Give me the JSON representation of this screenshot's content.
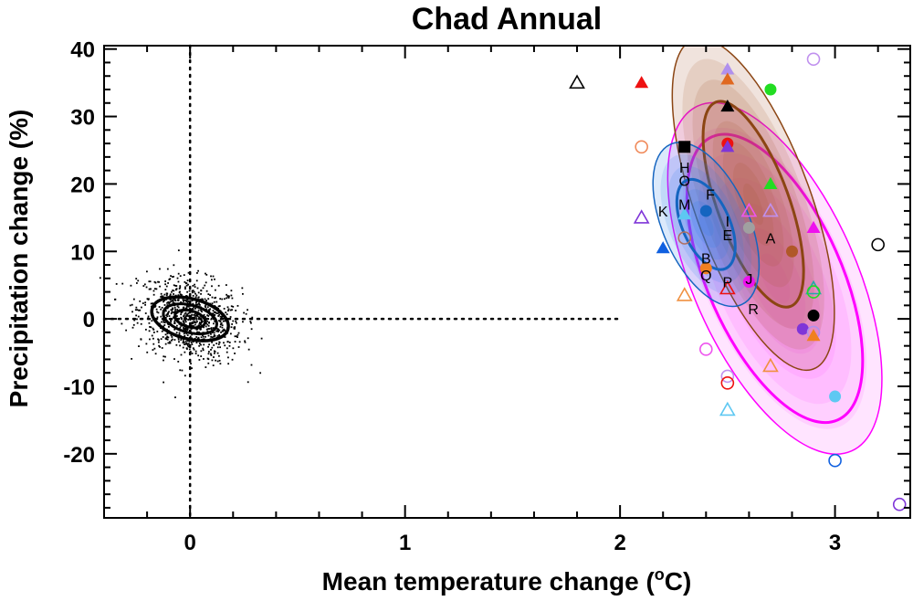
{
  "chart_data": {
    "type": "scatter",
    "title": "Chad Annual",
    "xlabel_main": "Mean temperature change (",
    "xlabel_sup": "o",
    "xlabel_end": "C)",
    "ylabel": "Precipitation change (%)",
    "xlim": [
      -0.4,
      3.35
    ],
    "ylim": [
      -29.5,
      40.5
    ],
    "x_ticks": [
      0,
      1,
      2,
      3
    ],
    "x_tick_labels": [
      "0",
      "1",
      "2",
      "3"
    ],
    "y_ticks": [
      40,
      30,
      20,
      10,
      0,
      -10,
      -20
    ],
    "y_tick_labels": [
      "40",
      "30",
      "20",
      "10",
      "0",
      "-10",
      "-20"
    ],
    "reference_lines": {
      "x": 0,
      "y": 0
    },
    "colors": {
      "magenta_fill": "#ff55ff",
      "magenta_edge": "#ff00ff",
      "brown_fill": "#a0522d",
      "brown_edge": "#8b4513",
      "blue_fill": "#1e78e8",
      "blue_edge": "#1565c0"
    },
    "distributions": [
      {
        "name": "natural variability",
        "center": [
          0.0,
          0.0
        ],
        "sx": 0.12,
        "sy": 3.0,
        "angle": -0.25
      },
      {
        "name": "magenta",
        "center": [
          2.72,
          6.0
        ],
        "semi_major": 28.0,
        "semi_minor": 0.38,
        "rotation_deg": -24
      },
      {
        "name": "brown",
        "center": [
          2.62,
          17.0
        ],
        "semi_major": 26.0,
        "semi_minor": 0.27,
        "rotation_deg": -20
      },
      {
        "name": "blue",
        "center": [
          2.4,
          14.0
        ],
        "semi_major": 13.0,
        "semi_minor": 0.2,
        "rotation_deg": -24
      }
    ],
    "markers": [
      {
        "x": 1.8,
        "y": 35,
        "shape": "triangle",
        "filled": false,
        "color": "#000000"
      },
      {
        "x": 2.1,
        "y": 35,
        "shape": "triangle",
        "filled": true,
        "color": "#ee1111"
      },
      {
        "x": 2.5,
        "y": 37,
        "shape": "triangle",
        "filled": true,
        "color": "#b090ee"
      },
      {
        "x": 2.5,
        "y": 35.5,
        "shape": "triangle",
        "filled": true,
        "color": "#e06820"
      },
      {
        "x": 2.5,
        "y": 31.5,
        "shape": "triangle",
        "filled": true,
        "color": "#000000"
      },
      {
        "x": 2.7,
        "y": 34,
        "shape": "circle",
        "filled": true,
        "color": "#22dd22"
      },
      {
        "x": 2.9,
        "y": 38.5,
        "shape": "circle",
        "filled": false,
        "color": "#c090ee"
      },
      {
        "x": 2.1,
        "y": 25.5,
        "shape": "circle",
        "filled": false,
        "color": "#f08a5a"
      },
      {
        "x": 2.3,
        "y": 25.5,
        "shape": "square",
        "filled": true,
        "color": "#000000"
      },
      {
        "x": 2.5,
        "y": 26,
        "shape": "circle",
        "filled": true,
        "color": "#ee1111"
      },
      {
        "x": 2.5,
        "y": 25.5,
        "shape": "triangle",
        "filled": true,
        "color": "#7f35d8"
      },
      {
        "x": 2.7,
        "y": 20,
        "shape": "triangle",
        "filled": true,
        "color": "#22dd22"
      },
      {
        "x": 2.1,
        "y": 15,
        "shape": "triangle",
        "filled": false,
        "color": "#7f35d8"
      },
      {
        "x": 2.3,
        "y": 15.5,
        "shape": "triangle",
        "filled": true,
        "color": "#5ec8f2"
      },
      {
        "x": 2.4,
        "y": 16,
        "shape": "circle",
        "filled": true,
        "color": "#1565c0"
      },
      {
        "x": 2.6,
        "y": 16,
        "shape": "triangle",
        "filled": false,
        "color": "#ee55ee"
      },
      {
        "x": 2.7,
        "y": 16,
        "shape": "triangle",
        "filled": false,
        "color": "#c090ee"
      },
      {
        "x": 2.6,
        "y": 13.5,
        "shape": "circle",
        "filled": true,
        "color": "#a0a0a0"
      },
      {
        "x": 2.9,
        "y": 13.5,
        "shape": "triangle",
        "filled": true,
        "color": "#ee11ee"
      },
      {
        "x": 2.2,
        "y": 10.5,
        "shape": "triangle",
        "filled": true,
        "color": "#1060e0"
      },
      {
        "x": 2.3,
        "y": 12,
        "shape": "circle",
        "filled": false,
        "color": "#b07060"
      },
      {
        "x": 2.8,
        "y": 10,
        "shape": "circle",
        "filled": true,
        "color": "#b05828"
      },
      {
        "x": 3.2,
        "y": 11,
        "shape": "circle",
        "filled": false,
        "color": "#000000"
      },
      {
        "x": 2.4,
        "y": 7.5,
        "shape": "circle",
        "filled": true,
        "color": "#f08020"
      },
      {
        "x": 2.6,
        "y": 5.5,
        "shape": "circle",
        "filled": true,
        "color": "#ee11ee"
      },
      {
        "x": 2.3,
        "y": 3.5,
        "shape": "triangle",
        "filled": false,
        "color": "#f09040"
      },
      {
        "x": 2.5,
        "y": 4.5,
        "shape": "triangle",
        "filled": false,
        "color": "#ee1111"
      },
      {
        "x": 2.9,
        "y": 4.5,
        "shape": "triangle",
        "filled": false,
        "color": "#22aaaa"
      },
      {
        "x": 2.9,
        "y": 4,
        "shape": "circle",
        "filled": false,
        "color": "#22dd22"
      },
      {
        "x": 2.9,
        "y": 0.5,
        "shape": "circle",
        "filled": true,
        "color": "#000000"
      },
      {
        "x": 2.85,
        "y": -1.5,
        "shape": "circle",
        "filled": true,
        "color": "#7f35d8"
      },
      {
        "x": 2.9,
        "y": -2,
        "shape": "circle",
        "filled": false,
        "color": "#b090ee"
      },
      {
        "x": 2.9,
        "y": -2.5,
        "shape": "triangle",
        "filled": true,
        "color": "#f08020"
      },
      {
        "x": 2.4,
        "y": -4.5,
        "shape": "circle",
        "filled": false,
        "color": "#ee55ee"
      },
      {
        "x": 2.7,
        "y": -7,
        "shape": "triangle",
        "filled": false,
        "color": "#f09040"
      },
      {
        "x": 2.5,
        "y": -8.5,
        "shape": "circle",
        "filled": false,
        "color": "#c090ee"
      },
      {
        "x": 2.5,
        "y": -9.5,
        "shape": "circle",
        "filled": false,
        "color": "#ee1111"
      },
      {
        "x": 3.0,
        "y": -11.5,
        "shape": "circle",
        "filled": true,
        "color": "#5ec8f2"
      },
      {
        "x": 2.5,
        "y": -13.5,
        "shape": "triangle",
        "filled": false,
        "color": "#5ec8f2"
      },
      {
        "x": 3.0,
        "y": -21,
        "shape": "circle",
        "filled": false,
        "color": "#1060e0"
      },
      {
        "x": 3.3,
        "y": -27.5,
        "shape": "circle",
        "filled": false,
        "color": "#7f35d8"
      }
    ],
    "letter_labels": [
      {
        "x": 2.3,
        "y": 22.5,
        "text": "H"
      },
      {
        "x": 2.3,
        "y": 20.5,
        "text": "O"
      },
      {
        "x": 2.42,
        "y": 18.5,
        "text": "F"
      },
      {
        "x": 2.2,
        "y": 16,
        "text": "K"
      },
      {
        "x": 2.3,
        "y": 17,
        "text": "M"
      },
      {
        "x": 2.5,
        "y": 14.5,
        "text": "I"
      },
      {
        "x": 2.5,
        "y": 12.5,
        "text": "E"
      },
      {
        "x": 2.7,
        "y": 12,
        "text": "A"
      },
      {
        "x": 2.4,
        "y": 9,
        "text": "B"
      },
      {
        "x": 2.4,
        "y": 6.5,
        "text": "Q"
      },
      {
        "x": 2.5,
        "y": 5.5,
        "text": "P"
      },
      {
        "x": 2.6,
        "y": 6,
        "text": "J"
      },
      {
        "x": 2.62,
        "y": 1.5,
        "text": "R"
      }
    ]
  }
}
